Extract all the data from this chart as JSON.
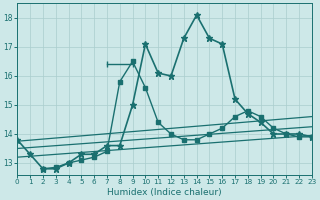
{
  "xlabel": "Humidex (Indice chaleur)",
  "bg_color": "#cde8e8",
  "grid_color": "#aacece",
  "line_color": "#1a7070",
  "xlim": [
    0,
    23
  ],
  "ylim": [
    12.6,
    18.5
  ],
  "yticks": [
    13,
    14,
    15,
    16,
    17,
    18
  ],
  "xticks": [
    0,
    1,
    2,
    3,
    4,
    5,
    6,
    7,
    8,
    9,
    10,
    11,
    12,
    13,
    14,
    15,
    16,
    17,
    18,
    19,
    20,
    21,
    22,
    23
  ],
  "line_main": {
    "x": [
      0,
      1,
      2,
      3,
      4,
      5,
      6,
      7,
      8,
      9,
      10,
      11,
      12,
      13,
      14,
      15,
      16,
      17,
      18,
      19,
      20,
      21,
      22,
      23
    ],
    "y": [
      13.8,
      13.3,
      12.8,
      12.8,
      13.0,
      13.3,
      13.3,
      13.6,
      13.6,
      15.0,
      17.1,
      16.1,
      16.0,
      17.3,
      18.1,
      17.3,
      17.1,
      15.2,
      14.7,
      14.4,
      14.0,
      14.0,
      14.0,
      13.9
    ]
  },
  "line_second": {
    "x": [
      2,
      3,
      4,
      5,
      6,
      7,
      8,
      9,
      10,
      11,
      12,
      13,
      14,
      15,
      16,
      17,
      18,
      19,
      20,
      21,
      22,
      23
    ],
    "y": [
      12.8,
      12.85,
      13.0,
      13.1,
      13.2,
      13.4,
      15.8,
      16.5,
      15.6,
      14.4,
      14.0,
      13.8,
      13.8,
      14.0,
      14.2,
      14.6,
      14.8,
      14.6,
      14.2,
      14.0,
      13.9,
      13.9
    ]
  },
  "line_horiz": {
    "x": [
      7,
      9
    ],
    "y": [
      16.4,
      16.4
    ]
  },
  "linear_lines": [
    {
      "x": [
        0,
        23
      ],
      "y": [
        13.75,
        14.6
      ]
    },
    {
      "x": [
        0,
        23
      ],
      "y": [
        13.5,
        14.25
      ]
    },
    {
      "x": [
        0,
        23
      ],
      "y": [
        13.2,
        13.95
      ]
    }
  ]
}
